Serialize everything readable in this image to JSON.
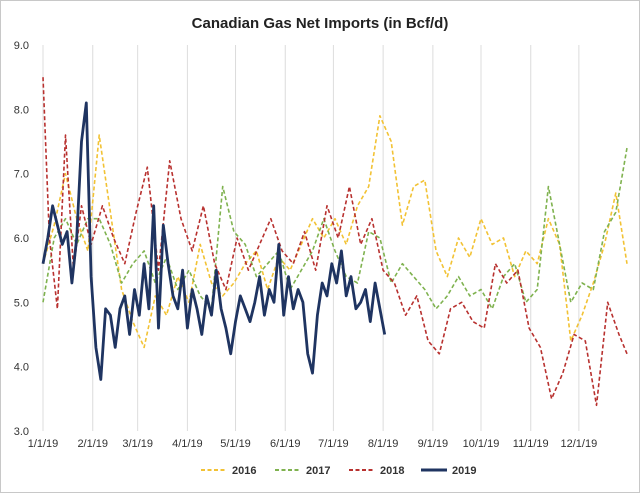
{
  "chart_data": {
    "type": "line",
    "title": "Canadian Gas Net Imports (in Bcf/d)",
    "xlabel": "",
    "ylabel": "",
    "ylim": [
      3.0,
      9.0
    ],
    "y_ticks": [
      "3.0",
      "4.0",
      "5.0",
      "6.0",
      "7.0",
      "8.0",
      "9.0"
    ],
    "x_ticks": [
      "1/1/19",
      "2/1/19",
      "3/1/19",
      "4/1/19",
      "5/1/19",
      "6/1/19",
      "7/1/19",
      "8/1/19",
      "9/1/19",
      "10/1/19",
      "11/1/19",
      "12/1/19"
    ],
    "grid": "vertical",
    "legend_position": "bottom",
    "series": [
      {
        "name": "2016",
        "color": "#f2c234",
        "style": "dashed",
        "x": [
          "1/1",
          "1/8",
          "1/15",
          "1/22",
          "1/29",
          "2/5",
          "2/12",
          "2/19",
          "2/26",
          "3/5",
          "3/12",
          "3/19",
          "3/26",
          "4/2",
          "4/9",
          "4/16",
          "4/23",
          "4/30",
          "5/7",
          "5/14",
          "5/21",
          "5/28",
          "6/4",
          "6/11",
          "6/18",
          "6/25",
          "7/2",
          "7/9",
          "7/16",
          "7/23",
          "7/30",
          "8/6",
          "8/13",
          "8/20",
          "8/27",
          "9/3",
          "9/10",
          "9/17",
          "9/24",
          "10/1",
          "10/8",
          "10/15",
          "10/22",
          "10/29",
          "11/5",
          "11/12",
          "11/19",
          "11/26",
          "12/3",
          "12/10",
          "12/17",
          "12/24",
          "12/31"
        ],
        "values": [
          5.6,
          6.2,
          7.0,
          6.3,
          5.8,
          7.6,
          6.4,
          5.2,
          4.7,
          4.3,
          5.1,
          4.8,
          5.4,
          5.0,
          5.9,
          5.3,
          5.1,
          5.3,
          5.6,
          5.8,
          5.2,
          5.7,
          5.5,
          5.9,
          6.3,
          6.0,
          6.3,
          5.9,
          6.5,
          6.8,
          7.9,
          7.5,
          6.2,
          6.8,
          6.9,
          5.8,
          5.4,
          6.0,
          5.7,
          6.3,
          5.9,
          6.0,
          5.4,
          5.8,
          5.6,
          6.3,
          5.9,
          4.4,
          4.8,
          5.3,
          5.9,
          6.7,
          5.6
        ]
      },
      {
        "name": "2017",
        "color": "#7fb24f",
        "style": "dashed",
        "x": [
          "1/1",
          "1/8",
          "1/15",
          "1/22",
          "1/29",
          "2/5",
          "2/12",
          "2/19",
          "2/26",
          "3/5",
          "3/12",
          "3/19",
          "3/26",
          "4/2",
          "4/9",
          "4/16",
          "4/23",
          "4/30",
          "5/7",
          "5/14",
          "5/21",
          "5/28",
          "6/4",
          "6/11",
          "6/18",
          "6/25",
          "7/2",
          "7/9",
          "7/16",
          "7/23",
          "7/30",
          "8/6",
          "8/13",
          "8/20",
          "8/27",
          "9/3",
          "9/10",
          "9/17",
          "9/24",
          "10/1",
          "10/8",
          "10/15",
          "10/22",
          "10/29",
          "11/5",
          "11/12",
          "11/19",
          "11/26",
          "12/3",
          "12/10",
          "12/17",
          "12/24",
          "12/31"
        ],
        "values": [
          5.0,
          6.0,
          6.3,
          5.9,
          6.3,
          6.3,
          5.9,
          5.3,
          5.6,
          5.8,
          5.3,
          5.7,
          5.2,
          5.5,
          5.1,
          4.9,
          6.8,
          6.1,
          5.9,
          5.4,
          5.6,
          5.8,
          5.2,
          5.5,
          5.8,
          6.3,
          5.8,
          5.4,
          5.3,
          6.1,
          6.0,
          5.3,
          5.6,
          5.4,
          5.2,
          4.9,
          5.1,
          5.4,
          5.1,
          5.2,
          4.9,
          5.4,
          5.6,
          5.0,
          5.2,
          6.8,
          5.9,
          5.0,
          5.3,
          5.2,
          6.1,
          6.4,
          7.4
        ]
      },
      {
        "name": "2018",
        "color": "#b8312f",
        "style": "dashed",
        "x": [
          "1/1",
          "1/5",
          "1/10",
          "1/15",
          "1/20",
          "1/25",
          "1/31",
          "2/7",
          "2/14",
          "2/21",
          "2/28",
          "3/7",
          "3/14",
          "3/21",
          "3/28",
          "4/4",
          "4/11",
          "4/18",
          "4/25",
          "5/2",
          "5/9",
          "5/16",
          "5/23",
          "5/30",
          "6/6",
          "6/13",
          "6/20",
          "6/27",
          "7/4",
          "7/11",
          "7/18",
          "7/25",
          "8/1",
          "8/8",
          "8/15",
          "8/22",
          "8/29",
          "9/5",
          "9/12",
          "9/19",
          "9/26",
          "10/3",
          "10/10",
          "10/17",
          "10/24",
          "10/31",
          "11/7",
          "11/14",
          "11/21",
          "11/28",
          "12/5",
          "12/12",
          "12/19",
          "12/26",
          "12/31"
        ],
        "values": [
          8.5,
          6.0,
          4.9,
          7.6,
          5.5,
          6.5,
          5.9,
          6.5,
          6.0,
          5.6,
          6.4,
          7.1,
          5.5,
          7.2,
          6.3,
          5.8,
          6.5,
          5.6,
          5.2,
          6.0,
          5.5,
          5.9,
          6.3,
          5.8,
          5.6,
          6.1,
          5.5,
          6.5,
          6.0,
          6.8,
          5.9,
          6.3,
          5.5,
          5.3,
          4.8,
          5.1,
          4.4,
          4.2,
          4.9,
          5.0,
          4.7,
          4.6,
          5.6,
          5.3,
          5.5,
          4.6,
          4.3,
          3.5,
          3.9,
          4.5,
          4.4,
          3.4,
          5.0,
          4.5,
          4.2
        ]
      },
      {
        "name": "2019",
        "color": "#1f3461",
        "style": "solid",
        "x": [
          "1/1",
          "1/4",
          "1/7",
          "1/10",
          "1/13",
          "1/16",
          "1/19",
          "1/22",
          "1/25",
          "1/28",
          "1/31",
          "2/3",
          "2/6",
          "2/9",
          "2/12",
          "2/15",
          "2/18",
          "2/21",
          "2/24",
          "2/27",
          "3/2",
          "3/5",
          "3/8",
          "3/11",
          "3/14",
          "3/17",
          "3/20",
          "3/23",
          "3/26",
          "3/29",
          "4/1",
          "4/4",
          "4/7",
          "4/10",
          "4/13",
          "4/16",
          "4/19",
          "4/22",
          "4/25",
          "4/28",
          "5/1",
          "5/4",
          "5/7",
          "5/10",
          "5/13",
          "5/16",
          "5/19",
          "5/22",
          "5/25",
          "5/28",
          "5/31",
          "6/3",
          "6/6",
          "6/9",
          "6/12",
          "6/15",
          "6/18",
          "6/21",
          "6/24",
          "6/27",
          "6/30",
          "7/3",
          "7/6",
          "7/9",
          "7/12",
          "7/15",
          "7/18",
          "7/21",
          "7/24",
          "7/27",
          "7/30",
          "8/2"
        ],
        "values": [
          5.6,
          6.0,
          6.5,
          6.2,
          5.9,
          6.1,
          5.3,
          6.0,
          7.5,
          8.1,
          5.4,
          4.3,
          3.8,
          4.9,
          4.8,
          4.3,
          4.9,
          5.1,
          4.5,
          5.2,
          4.8,
          5.6,
          4.9,
          6.5,
          4.6,
          6.2,
          5.6,
          5.1,
          4.9,
          5.5,
          4.6,
          5.2,
          4.9,
          4.5,
          5.1,
          4.8,
          5.5,
          4.9,
          4.6,
          4.2,
          4.7,
          5.1,
          4.9,
          4.7,
          5.0,
          5.4,
          4.8,
          5.2,
          5.0,
          5.9,
          4.8,
          5.4,
          4.9,
          5.2,
          5.0,
          4.2,
          3.9,
          4.8,
          5.3,
          5.1,
          5.6,
          5.3,
          5.8,
          5.1,
          5.4,
          4.9,
          5.0,
          5.2,
          4.7,
          5.3,
          4.9,
          4.5
        ]
      }
    ]
  }
}
